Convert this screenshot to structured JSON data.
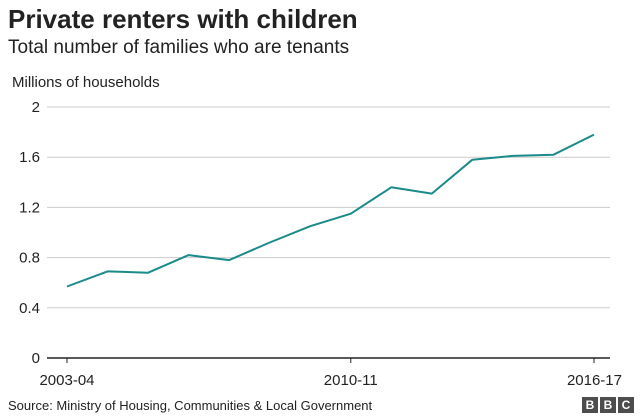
{
  "title": "Private renters with children",
  "subtitle": "Total number of families who are tenants",
  "source": "Source: Ministry of Housing, Communities & Local Government",
  "logo": [
    "B",
    "B",
    "C"
  ],
  "colors": {
    "line": "#1a8a8a",
    "grid": "#cccccc",
    "axis": "#222222",
    "text": "#222222"
  },
  "chart_data": {
    "type": "line",
    "title": "Private renters with children",
    "subtitle": "Total number of families who are tenants",
    "ylabel": "Millions of households",
    "xlabel": "",
    "ylim": [
      0,
      2
    ],
    "yticks": [
      0,
      0.4,
      0.8,
      1.2,
      1.6,
      2
    ],
    "ytick_labels": [
      "0",
      "0.4",
      "0.8",
      "1.2",
      "1.6",
      "2"
    ],
    "x": [
      "2003-04",
      "2004-05",
      "2005-06",
      "2006-07",
      "2007-08",
      "2008-09",
      "2009-10",
      "2010-11",
      "2011-12",
      "2012-13",
      "2013-14",
      "2014-15",
      "2015-16",
      "2016-17"
    ],
    "xtick_labels": [
      "2003-04",
      "2010-11",
      "2016-17"
    ],
    "grid": true,
    "series": [
      {
        "values": [
          0.57,
          0.69,
          0.68,
          0.82,
          0.78,
          0.92,
          1.05,
          1.15,
          1.36,
          1.31,
          1.58,
          1.61,
          1.62,
          1.78
        ]
      }
    ]
  }
}
